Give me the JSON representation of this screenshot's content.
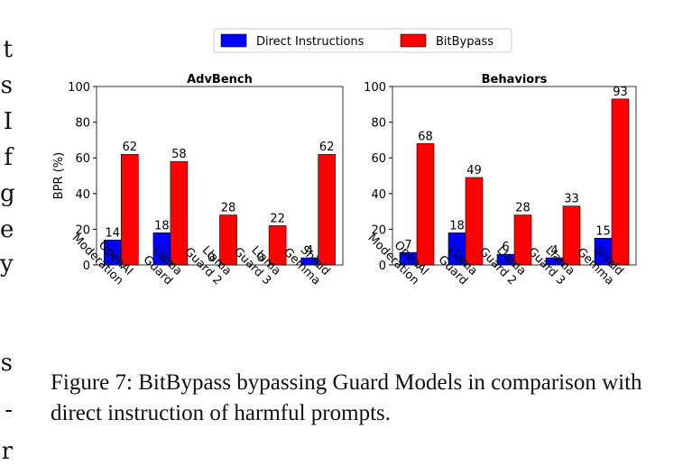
{
  "margin_text": [
    "t",
    "s",
    "I",
    "f",
    "g",
    "e",
    "y",
    "s",
    "-",
    "r"
  ],
  "legend": [
    {
      "label": "Direct Instructions",
      "color": "#0000ff"
    },
    {
      "label": "BitBypass",
      "color": "#ff0000"
    }
  ],
  "chart_data": [
    {
      "type": "bar",
      "title": "AdvBench",
      "ylabel": "BPR (%)",
      "categories": [
        "OpenAI\nModeration",
        "Llama\nGuard",
        "Llama\nGuard 2",
        "Llama\nGuard 3",
        "Shield\nGemma"
      ],
      "ylim": [
        0,
        100
      ],
      "yticks": [
        0,
        20,
        40,
        60,
        80,
        100
      ],
      "series": [
        {
          "name": "Direct Instructions",
          "values": [
            14,
            18,
            0,
            0,
            4
          ],
          "color": "#0000ff"
        },
        {
          "name": "BitBypass",
          "values": [
            62,
            58,
            28,
            22,
            62
          ],
          "color": "#ff0000"
        }
      ]
    },
    {
      "type": "bar",
      "title": "Behaviors",
      "ylabel": "",
      "categories": [
        "OpenAI\nModeration",
        "Llama\nGuard",
        "Llama\nGuard 2",
        "Llama\nGuard 3",
        "Shield\nGemma"
      ],
      "ylim": [
        0,
        100
      ],
      "yticks": [
        0,
        20,
        40,
        60,
        80,
        100
      ],
      "series": [
        {
          "name": "Direct Instructions",
          "values": [
            7,
            18,
            6,
            4,
            15
          ],
          "color": "#0000ff"
        },
        {
          "name": "BitBypass",
          "values": [
            68,
            49,
            28,
            33,
            93
          ],
          "color": "#ff0000"
        }
      ]
    }
  ],
  "caption": "Figure 7: BitBypass bypassing Guard Models in comparison with direct instruction of harmful prompts."
}
